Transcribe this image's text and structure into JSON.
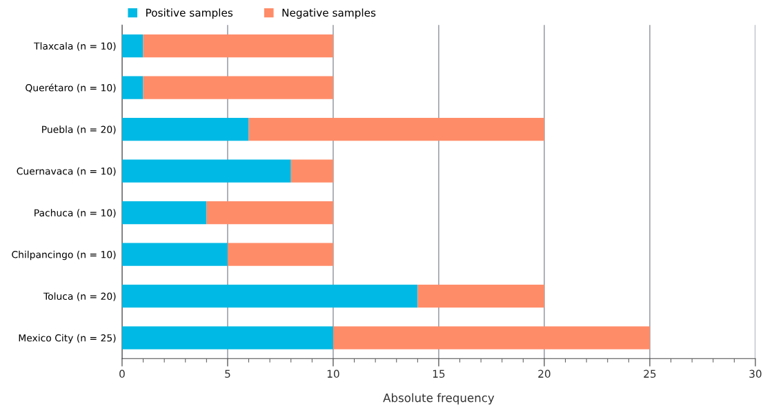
{
  "chart_data": {
    "type": "bar",
    "orientation": "horizontal",
    "stacked": true,
    "categories": [
      "Tlaxcala (n = 10)",
      "Querétaro (n = 10)",
      "Puebla (n = 20)",
      "Cuernavaca (n = 10)",
      "Pachuca (n = 10)",
      "Chilpancingo (n = 10)",
      "Toluca (n = 20)",
      "Mexico City (n = 25)"
    ],
    "series": [
      {
        "name": "Positive samples",
        "color": "#00b9e4",
        "values": [
          1,
          1,
          6,
          8,
          4,
          5,
          14,
          10
        ]
      },
      {
        "name": "Negative samples",
        "color": "#ff8c69",
        "values": [
          9,
          9,
          14,
          2,
          6,
          5,
          6,
          15
        ]
      }
    ],
    "xlabel": "Absolute frequency",
    "xlim": [
      0,
      30
    ],
    "xticks": [
      0,
      5,
      10,
      15,
      20,
      25,
      30
    ],
    "grid": "x",
    "legend": "top left"
  }
}
